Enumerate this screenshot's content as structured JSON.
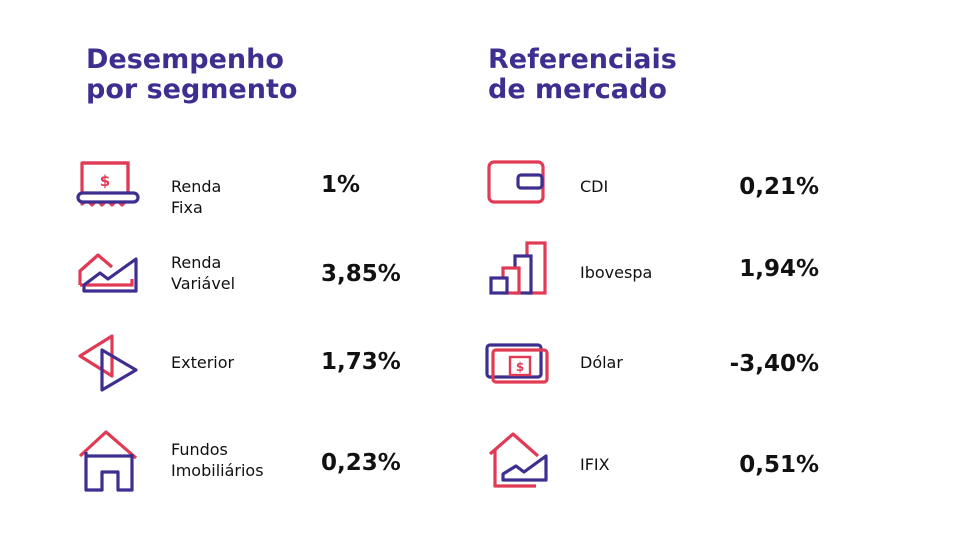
{
  "headings": {
    "segments": [
      "Desempenho",
      "por segmento"
    ],
    "market": [
      "Referenciais",
      "de mercado"
    ]
  },
  "colors": {
    "heading": "#3d2e8f",
    "accent_red": "#e03a55",
    "accent_purple": "#3d2e8f"
  },
  "segments": [
    {
      "icon": "receipt-dollar-icon",
      "label": [
        "Renda Fixa"
      ],
      "value": "1%"
    },
    {
      "icon": "mountain-chart-icon",
      "label": [
        "Renda",
        "Variável"
      ],
      "value": "3,85%"
    },
    {
      "icon": "play-arrows-icon",
      "label": [
        "Exterior"
      ],
      "value": "1,73%"
    },
    {
      "icon": "house-icon",
      "label": [
        "Fundos",
        "Imobiliários"
      ],
      "value": "0,23%"
    }
  ],
  "market": [
    {
      "icon": "wallet-icon",
      "label": "CDI",
      "value": "0,21%"
    },
    {
      "icon": "bar-chart-icon",
      "label": "Ibovespa",
      "value": "1,94%"
    },
    {
      "icon": "banknote-icon",
      "label": "Dólar",
      "value": "-3,40%"
    },
    {
      "icon": "house-chart-icon",
      "label": "IFIX",
      "value": "0,51%"
    }
  ]
}
